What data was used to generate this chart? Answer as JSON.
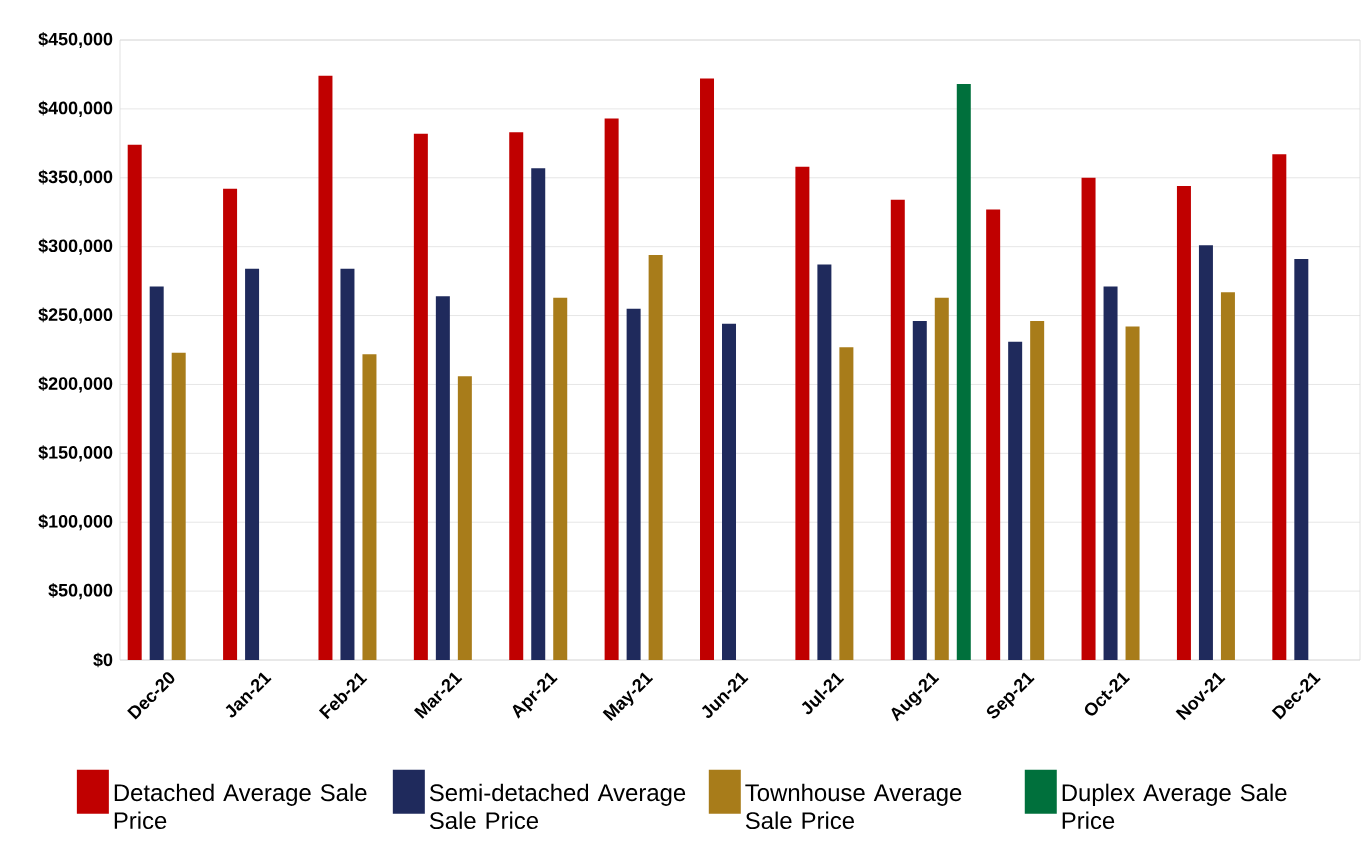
{
  "chart_data": {
    "type": "bar",
    "categories": [
      "Dec-20",
      "Jan-21",
      "Feb-21",
      "Mar-21",
      "Apr-21",
      "May-21",
      "Jun-21",
      "Jul-21",
      "Aug-21",
      "Sep-21",
      "Oct-21",
      "Nov-21",
      "Dec-21"
    ],
    "series": [
      {
        "name": "Detached Average Sale Price",
        "color": "#c00000",
        "values": [
          374000,
          342000,
          424000,
          382000,
          383000,
          393000,
          422000,
          358000,
          334000,
          327000,
          350000,
          344000,
          367000
        ]
      },
      {
        "name": "Semi-detached Average Sale Price",
        "color": "#1f2a5c",
        "values": [
          271000,
          284000,
          284000,
          264000,
          357000,
          255000,
          244000,
          287000,
          246000,
          231000,
          271000,
          301000,
          291000
        ]
      },
      {
        "name": "Townhouse Average Sale Price",
        "color": "#a87c1a",
        "values": [
          223000,
          null,
          222000,
          206000,
          263000,
          294000,
          null,
          227000,
          263000,
          246000,
          242000,
          267000,
          null
        ]
      },
      {
        "name": "Duplex Average Sale Price",
        "color": "#00703c",
        "values": [
          null,
          null,
          null,
          null,
          null,
          null,
          null,
          null,
          418000,
          null,
          null,
          null,
          null
        ]
      }
    ],
    "ylim": [
      0,
      450000
    ],
    "yticks": [
      {
        "value": 0,
        "label": "$0"
      },
      {
        "value": 50000,
        "label": "$50,000"
      },
      {
        "value": 100000,
        "label": "$100,000"
      },
      {
        "value": 150000,
        "label": "$150,000"
      },
      {
        "value": 200000,
        "label": "$200,000"
      },
      {
        "value": 250000,
        "label": "$250,000"
      },
      {
        "value": 300000,
        "label": "$300,000"
      },
      {
        "value": 350000,
        "label": "$350,000"
      },
      {
        "value": 400000,
        "label": "$400,000"
      },
      {
        "value": 450000,
        "label": "$450,000"
      }
    ],
    "grid": "y",
    "legend": "bottom"
  }
}
